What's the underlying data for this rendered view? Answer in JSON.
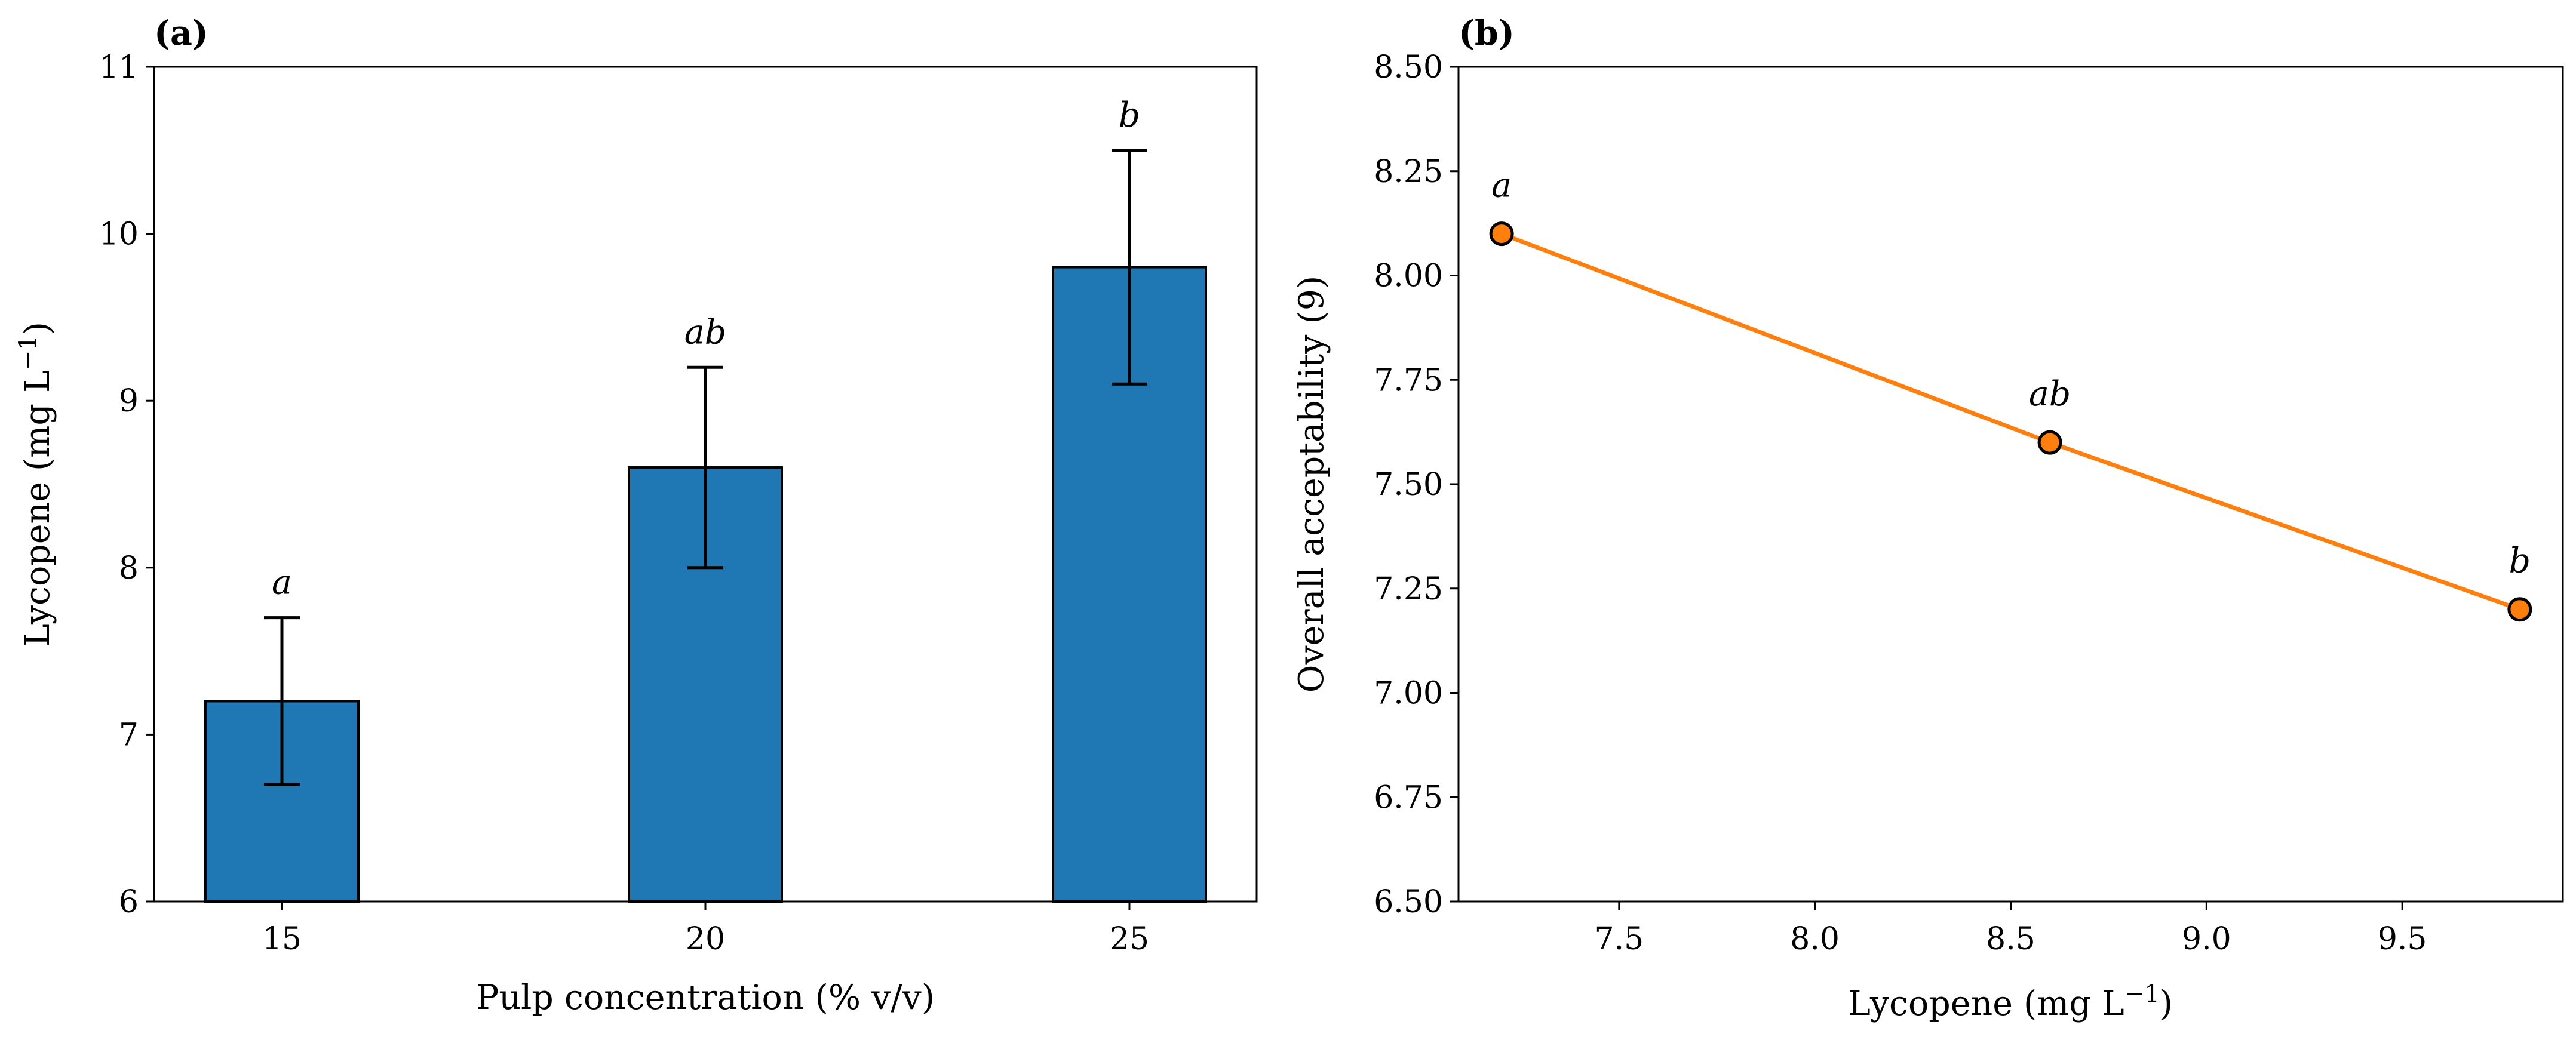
{
  "colors": {
    "bar_fill": "#1f77b4",
    "line": "#ff7f0e",
    "marker_fill": "#ff7f0e"
  },
  "chart_data": [
    {
      "panel_label": "(a)",
      "type": "bar",
      "categories": [
        "15",
        "20",
        "25"
      ],
      "values": [
        7.2,
        8.6,
        9.8
      ],
      "errors": [
        0.5,
        0.6,
        0.7
      ],
      "significance": [
        "a",
        "ab",
        "b"
      ],
      "xlabel": "Pulp concentration (% v/v)",
      "ylabel_prefix": "Lycopene (mg L",
      "ylabel_sup": "−1",
      "ylabel_suffix": ")",
      "ylim": [
        6,
        11
      ],
      "yticks": [
        "6",
        "7",
        "8",
        "9",
        "10",
        "11"
      ],
      "grid": false
    },
    {
      "panel_label": "(b)",
      "type": "line",
      "x": [
        7.2,
        8.6,
        9.8
      ],
      "y": [
        8.1,
        7.6,
        7.2
      ],
      "significance": [
        "a",
        "ab",
        "b"
      ],
      "xlabel_prefix": "Lycopene (mg L",
      "xlabel_sup": "−1",
      "xlabel_suffix": ")",
      "ylabel": "Overall acceptability (9)",
      "xlim": [
        7.09,
        9.91
      ],
      "ylim": [
        6.5,
        8.5
      ],
      "xticks": [
        "7.5",
        "8.0",
        "8.5",
        "9.0",
        "9.5"
      ],
      "yticks": [
        "6.50",
        "6.75",
        "7.00",
        "7.25",
        "7.50",
        "7.75",
        "8.00",
        "8.25",
        "8.50"
      ],
      "grid": false
    }
  ]
}
